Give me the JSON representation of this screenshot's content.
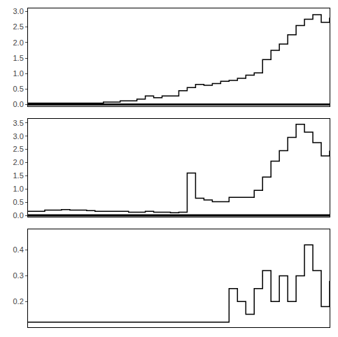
{
  "chart_data": [
    {
      "type": "step",
      "color": "#000000",
      "grid": false,
      "tick_labels": "y",
      "x": [
        0,
        1,
        2,
        3,
        4,
        5,
        6,
        7,
        8,
        9,
        10,
        11,
        12,
        13,
        14,
        15,
        16,
        17,
        18,
        19,
        20,
        21,
        22,
        23,
        24,
        25,
        26,
        27,
        28,
        29,
        30,
        31,
        32,
        33,
        34,
        35,
        36
      ],
      "values": [
        0.05,
        0.05,
        0.05,
        0.05,
        0.05,
        0.05,
        0.05,
        0.05,
        0.05,
        0.08,
        0.08,
        0.12,
        0.12,
        0.18,
        0.28,
        0.22,
        0.28,
        0.28,
        0.45,
        0.55,
        0.65,
        0.62,
        0.68,
        0.75,
        0.78,
        0.85,
        0.95,
        1.02,
        1.45,
        1.75,
        1.95,
        2.25,
        2.55,
        2.75,
        2.9,
        2.65,
        2.8
      ],
      "xlim": [
        0,
        36
      ],
      "xticks": [],
      "ylim": [
        -0.05,
        3.1
      ],
      "yticks": [
        {
          "value": 0.0,
          "label": "0.0"
        },
        0.5,
        {
          "value": 1.0,
          "label": "1.0"
        },
        1.5,
        {
          "value": 2.0,
          "label": "2.0"
        },
        2.5,
        {
          "value": 3.0,
          "label": "3.0"
        }
      ],
      "hline": 0
    },
    {
      "type": "step",
      "color": "#000000",
      "grid": false,
      "tick_labels": "y",
      "x": [
        0,
        1,
        2,
        3,
        4,
        5,
        6,
        7,
        8,
        9,
        10,
        11,
        12,
        13,
        14,
        15,
        16,
        17,
        18,
        19,
        20,
        21,
        22,
        23,
        24,
        25,
        26,
        27,
        28,
        29,
        30,
        31,
        32,
        33,
        34,
        35,
        36
      ],
      "values": [
        0.15,
        0.15,
        0.2,
        0.2,
        0.22,
        0.2,
        0.2,
        0.18,
        0.15,
        0.15,
        0.15,
        0.15,
        0.12,
        0.12,
        0.15,
        0.12,
        0.12,
        0.1,
        0.12,
        1.6,
        0.65,
        0.58,
        0.52,
        0.52,
        0.68,
        0.68,
        0.68,
        0.95,
        1.45,
        2.05,
        2.45,
        2.95,
        3.45,
        3.15,
        2.75,
        2.25,
        2.45
      ],
      "xlim": [
        0,
        36
      ],
      "xticks": [],
      "ylim": [
        -0.05,
        3.65
      ],
      "yticks": [
        {
          "value": 0.0,
          "label": "0.0"
        },
        0.5,
        {
          "value": 1.0,
          "label": "1.0"
        },
        1.5,
        {
          "value": 2.0,
          "label": "2.0"
        },
        2.5,
        {
          "value": 3.0,
          "label": "3.0"
        },
        3.5
      ],
      "hline": 0
    },
    {
      "type": "step",
      "color": "#000000",
      "grid": false,
      "tick_labels": "y",
      "x": [
        0,
        1,
        2,
        3,
        4,
        5,
        6,
        7,
        8,
        9,
        10,
        11,
        12,
        13,
        14,
        15,
        16,
        17,
        18,
        19,
        20,
        21,
        22,
        23,
        24,
        25,
        26,
        27,
        28,
        29,
        30,
        31,
        32,
        33,
        34,
        35,
        36
      ],
      "values": [
        0.12,
        0.12,
        0.12,
        0.12,
        0.12,
        0.12,
        0.12,
        0.12,
        0.12,
        0.12,
        0.12,
        0.12,
        0.12,
        0.12,
        0.12,
        0.12,
        0.12,
        0.12,
        0.12,
        0.12,
        0.12,
        0.12,
        0.12,
        0.12,
        0.25,
        0.2,
        0.15,
        0.25,
        0.32,
        0.2,
        0.3,
        0.2,
        0.3,
        0.42,
        0.32,
        0.18,
        0.28
      ],
      "xlim": [
        0,
        36
      ],
      "xticks": [],
      "ylim": [
        0.1,
        0.48
      ],
      "yticks": [
        0.2,
        0.3,
        0.4
      ]
    }
  ]
}
